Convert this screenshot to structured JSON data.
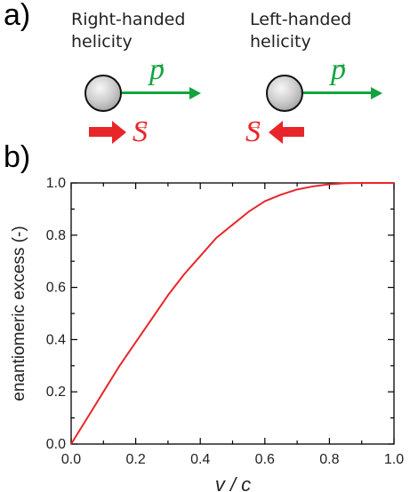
{
  "panel_a": {
    "label": "a)",
    "right": {
      "line1": "Right-handed",
      "line2": "helicity",
      "momentum_symbol": "p",
      "spin_symbol": "S"
    },
    "left": {
      "line1": "Left-handed",
      "line2": "helicity",
      "momentum_symbol": "p",
      "spin_symbol": "S"
    },
    "colors": {
      "momentum": "#14a33f",
      "spin": "#e8262a",
      "particle": "#b0b0b0"
    },
    "icons": [
      "particle-sphere-icon",
      "momentum-arrow-icon",
      "spin-arrow-icon"
    ]
  },
  "panel_b": {
    "label": "b)"
  },
  "chart_data": {
    "type": "line",
    "title": "",
    "xlabel": "v / c",
    "ylabel": "enantiomeric excess (-)",
    "xlim": [
      0.0,
      1.0
    ],
    "ylim": [
      0.0,
      1.0
    ],
    "xticks": [
      "0.0",
      "0.2",
      "0.4",
      "0.6",
      "0.8",
      "1.0"
    ],
    "yticks": [
      "0.0",
      "0.2",
      "0.4",
      "0.6",
      "0.8",
      "1.0"
    ],
    "grid": false,
    "legend": "none",
    "series": [
      {
        "color": "#e8262a",
        "x": [
          0.0,
          0.05,
          0.1,
          0.15,
          0.2,
          0.25,
          0.3,
          0.35,
          0.4,
          0.45,
          0.5,
          0.55,
          0.6,
          0.65,
          0.7,
          0.75,
          0.8,
          0.85,
          0.9,
          0.95,
          1.0
        ],
        "y": [
          0.0,
          0.1,
          0.2,
          0.3,
          0.39,
          0.48,
          0.57,
          0.65,
          0.72,
          0.79,
          0.84,
          0.89,
          0.93,
          0.955,
          0.975,
          0.987,
          0.995,
          0.999,
          1.0,
          1.0,
          1.0
        ]
      }
    ]
  }
}
